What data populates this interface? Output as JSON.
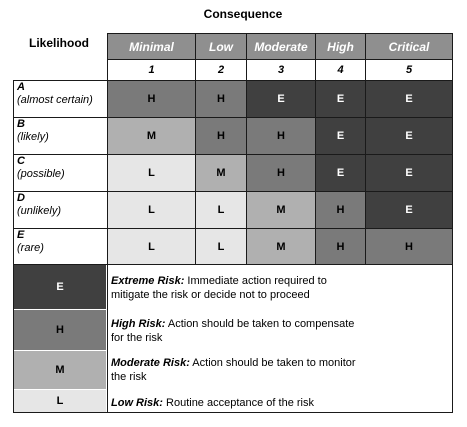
{
  "header": {
    "consequence_title": "Consequence",
    "likelihood_title": "Likelihood"
  },
  "columns": [
    {
      "name": "Minimal",
      "number": "1"
    },
    {
      "name": "Low",
      "number": "2"
    },
    {
      "name": "Moderate",
      "number": "3"
    },
    {
      "name": "High",
      "number": "4"
    },
    {
      "name": "Critical",
      "number": "5"
    }
  ],
  "rows": [
    {
      "key": "A",
      "desc": "(almost certain)",
      "cells": [
        "H",
        "H",
        "E",
        "E",
        "E"
      ]
    },
    {
      "key": "B",
      "desc": "(likely)",
      "cells": [
        "M",
        "H",
        "H",
        "E",
        "E"
      ]
    },
    {
      "key": "C",
      "desc": "(possible)",
      "cells": [
        "L",
        "M",
        "H",
        "E",
        "E"
      ]
    },
    {
      "key": "D",
      "desc": "(unlikely)",
      "cells": [
        "L",
        "L",
        "M",
        "H",
        "E"
      ]
    },
    {
      "key": "E",
      "desc": "(rare)",
      "cells": [
        "L",
        "L",
        "M",
        "H",
        "H"
      ]
    }
  ],
  "legend": [
    {
      "level": "E",
      "term": "Extreme Risk:",
      "line1": " Immediate action required to",
      "line2": "mitigate the risk or decide not to proceed"
    },
    {
      "level": "H",
      "term": "High Risk:",
      "line1": " Action should be taken to compensate",
      "line2": "for the risk"
    },
    {
      "level": "M",
      "term": "Moderate Risk:",
      "line1": " Action should be taken to monitor",
      "line2": "the risk"
    },
    {
      "level": "L",
      "term": "Low Risk:",
      "line1": " Routine acceptance of the risk",
      "line2": ""
    }
  ],
  "colors": {
    "E": "#404040",
    "H": "#7a7a7a",
    "M": "#b0b0b0",
    "L": "#e6e6e6",
    "header": "#8f8f8f"
  }
}
